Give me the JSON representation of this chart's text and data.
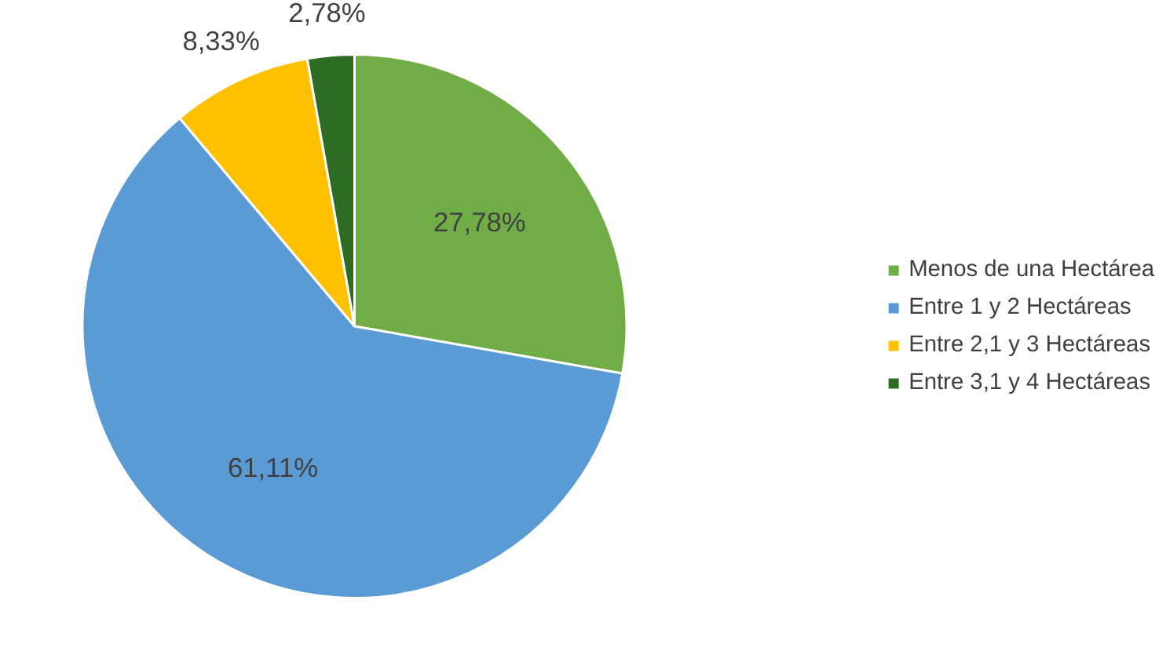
{
  "chart_data": {
    "type": "pie",
    "categories": [
      "Menos de una Hectárea",
      "Entre 1 y 2 Hectáreas",
      "Entre 2,1 y 3 Hectáreas",
      "Entre 3,1 y 4 Hectáreas"
    ],
    "values": [
      27.78,
      61.11,
      8.33,
      2.78
    ],
    "colors": [
      "#70ad47",
      "#5b9bd5",
      "#ffc000",
      "#2e6b24"
    ],
    "value_labels": [
      "27,78%",
      "61,11%",
      "8,33%",
      "2,78%"
    ],
    "legend": "right"
  }
}
